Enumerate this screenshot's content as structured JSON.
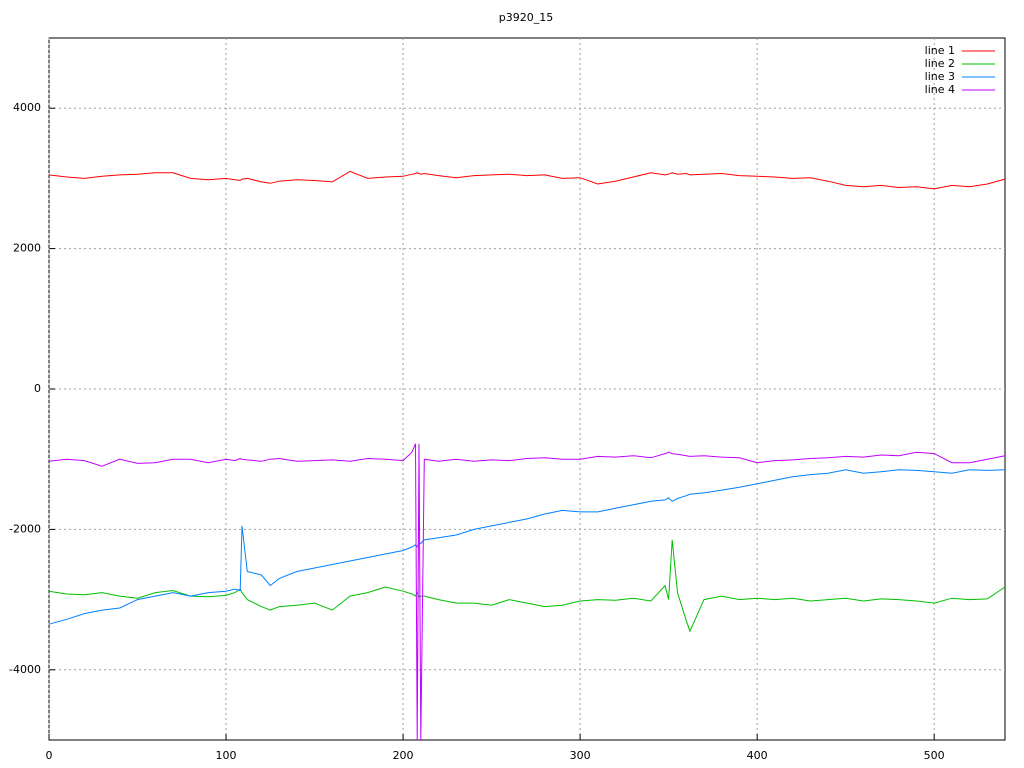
{
  "chart_data": {
    "type": "line",
    "title": "p3920_15",
    "x": [
      0,
      10,
      20,
      30,
      40,
      50,
      60,
      70,
      80,
      90,
      100,
      105,
      108,
      109,
      112,
      120,
      125,
      130,
      140,
      150,
      160,
      170,
      180,
      190,
      200,
      205,
      207,
      208,
      209,
      210,
      212,
      220,
      230,
      240,
      250,
      260,
      270,
      280,
      290,
      300,
      310,
      320,
      330,
      340,
      348,
      350,
      352,
      355,
      360,
      362,
      370,
      380,
      390,
      400,
      410,
      420,
      430,
      440,
      450,
      460,
      470,
      480,
      490,
      500,
      510,
      520,
      530,
      540
    ],
    "series": [
      {
        "name": "line 1",
        "color": "#ff0000",
        "values": [
          3050,
          3020,
          3000,
          3030,
          3050,
          3060,
          3080,
          3080,
          3000,
          2980,
          3000,
          2980,
          2970,
          2990,
          3000,
          2950,
          2930,
          2960,
          2980,
          2970,
          2950,
          3100,
          3000,
          3020,
          3030,
          3060,
          3070,
          3080,
          3070,
          3060,
          3070,
          3040,
          3010,
          3040,
          3050,
          3060,
          3040,
          3050,
          3000,
          3010,
          2920,
          2960,
          3020,
          3080,
          3050,
          3060,
          3080,
          3060,
          3070,
          3050,
          3060,
          3070,
          3040,
          3030,
          3020,
          3000,
          3010,
          2960,
          2900,
          2880,
          2900,
          2870,
          2880,
          2850,
          2900,
          2880,
          2920,
          2990
        ]
      },
      {
        "name": "line 2",
        "color": "#00c000",
        "values": [
          -2880,
          -2920,
          -2930,
          -2900,
          -2950,
          -2980,
          -2900,
          -2870,
          -2950,
          -2960,
          -2940,
          -2900,
          -2850,
          -2900,
          -3000,
          -3100,
          -3150,
          -3100,
          -3080,
          -3050,
          -3150,
          -2950,
          -2900,
          -2820,
          -2880,
          -2920,
          -2950,
          -2900,
          -2960,
          -2950,
          -2950,
          -3000,
          -3050,
          -3050,
          -3080,
          -3000,
          -3050,
          -3100,
          -3080,
          -3020,
          -3000,
          -3010,
          -2980,
          -3020,
          -2800,
          -3000,
          -2150,
          -2900,
          -3300,
          -3450,
          -3000,
          -2950,
          -3000,
          -2980,
          -3000,
          -2980,
          -3020,
          -3000,
          -2980,
          -3020,
          -2990,
          -3000,
          -3020,
          -3050,
          -2980,
          -3000,
          -2990,
          -2820
        ]
      },
      {
        "name": "line 3",
        "color": "#0080ff",
        "values": [
          -3350,
          -3280,
          -3200,
          -3150,
          -3120,
          -3000,
          -2950,
          -2900,
          -2950,
          -2900,
          -2880,
          -2850,
          -2870,
          -1950,
          -2600,
          -2650,
          -2800,
          -2700,
          -2600,
          -2550,
          -2500,
          -2450,
          -2400,
          -2350,
          -2300,
          -2250,
          -2220,
          -2250,
          -2200,
          -2200,
          -2150,
          -2120,
          -2080,
          -2000,
          -1950,
          -1900,
          -1850,
          -1780,
          -1730,
          -1750,
          -1750,
          -1700,
          -1650,
          -1600,
          -1580,
          -1550,
          -1600,
          -1560,
          -1520,
          -1500,
          -1480,
          -1440,
          -1400,
          -1350,
          -1300,
          -1250,
          -1220,
          -1200,
          -1150,
          -1200,
          -1180,
          -1150,
          -1160,
          -1180,
          -1200,
          -1150,
          -1160,
          -1150
        ]
      },
      {
        "name": "line 4",
        "color": "#c000ff",
        "values": [
          -1030,
          -1000,
          -1020,
          -1100,
          -1000,
          -1060,
          -1050,
          -1000,
          -1000,
          -1050,
          -1000,
          -1020,
          -990,
          -1000,
          -1010,
          -1030,
          -1000,
          -990,
          -1030,
          -1020,
          -1010,
          -1030,
          -990,
          -1000,
          -1020,
          -900,
          -780,
          -5000,
          -780,
          -5000,
          -1000,
          -1030,
          -1000,
          -1030,
          -1010,
          -1020,
          -990,
          -980,
          -1000,
          -1000,
          -960,
          -970,
          -950,
          -980,
          -920,
          -900,
          -920,
          -930,
          -950,
          -960,
          -950,
          -970,
          -980,
          -1050,
          -1020,
          -1010,
          -990,
          -980,
          -960,
          -970,
          -940,
          -950,
          -900,
          -920,
          -1050,
          -1050,
          -1000,
          -950
        ]
      }
    ],
    "xlim": [
      0,
      540
    ],
    "ylim": [
      -5000,
      5000
    ],
    "xticks": [
      0,
      100,
      200,
      300,
      400,
      500
    ],
    "yticks": [
      -4000,
      -2000,
      0,
      2000,
      4000
    ],
    "grid": true,
    "legend": "top-right"
  }
}
